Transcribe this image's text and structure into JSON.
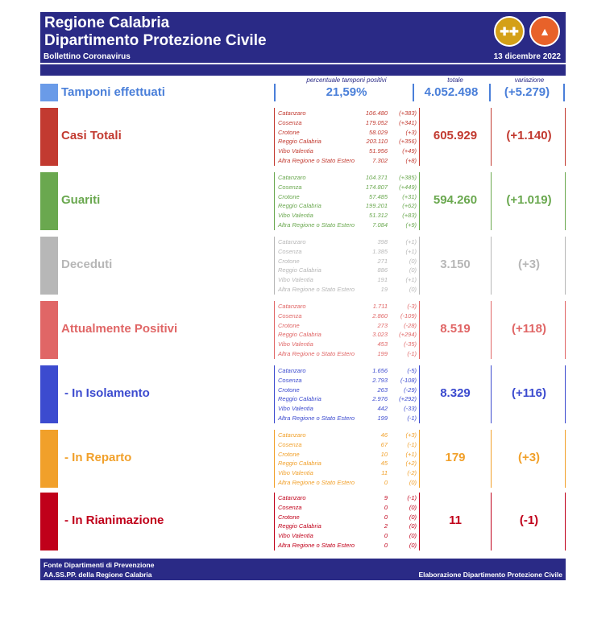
{
  "header": {
    "title1": "Regione Calabria",
    "title2": "Dipartimento Protezione Civile",
    "bulletin": "Bollettino Coronavirus",
    "date": "13 dicembre 2022",
    "logo2_text": "PROTEZIONE CIVILE"
  },
  "tamponi": {
    "head_pct": "percentuale tamponi positivi",
    "head_tot": "totale",
    "head_var": "variazione",
    "label": "Tamponi effettuati",
    "pct": "21,59%",
    "total": "4.052.498",
    "variation": "(+5.279)",
    "color": "#4a7fd9"
  },
  "rows": [
    {
      "label": "Casi Totali",
      "color": "#c23a30",
      "total": "605.929",
      "variation": "(+1.140)",
      "items": [
        {
          "name": "Catanzaro",
          "value": "106.480",
          "delta": "(+383)"
        },
        {
          "name": "Cosenza",
          "value": "179.052",
          "delta": "(+341)"
        },
        {
          "name": "Crotone",
          "value": "58.029",
          "delta": "(+3)"
        },
        {
          "name": "Reggio Calabria",
          "value": "203.110",
          "delta": "(+356)"
        },
        {
          "name": "Vibo Valentia",
          "value": "51.956",
          "delta": "(+49)"
        },
        {
          "name": "Altra Regione o Stato Estero",
          "value": "7.302",
          "delta": "(+8)"
        }
      ]
    },
    {
      "label": "Guariti",
      "color": "#6aa84f",
      "total": "594.260",
      "variation": "(+1.019)",
      "items": [
        {
          "name": "Catanzaro",
          "value": "104.371",
          "delta": "(+385)"
        },
        {
          "name": "Cosenza",
          "value": "174.807",
          "delta": "(+449)"
        },
        {
          "name": "Crotone",
          "value": "57.485",
          "delta": "(+31)"
        },
        {
          "name": "Reggio Calabria",
          "value": "199.201",
          "delta": "(+62)"
        },
        {
          "name": "Vibo Valentia",
          "value": "51.312",
          "delta": "(+83)"
        },
        {
          "name": "Altra Regione o Stato Estero",
          "value": "7.084",
          "delta": "(+9)"
        }
      ]
    },
    {
      "label": "Deceduti",
      "color": "#b7b7b7",
      "total": "3.150",
      "variation": "(+3)",
      "items": [
        {
          "name": "Catanzaro",
          "value": "398",
          "delta": "(+1)"
        },
        {
          "name": "Cosenza",
          "value": "1.385",
          "delta": "(+1)"
        },
        {
          "name": "Crotone",
          "value": "271",
          "delta": "(0)"
        },
        {
          "name": "Reggio Calabria",
          "value": "886",
          "delta": "(0)"
        },
        {
          "name": "Vibo Valentia",
          "value": "191",
          "delta": "(+1)"
        },
        {
          "name": "Altra Regione o Stato Estero",
          "value": "19",
          "delta": "(0)"
        }
      ]
    },
    {
      "label": "Attualmente Positivi",
      "color": "#e06666",
      "total": "8.519",
      "variation": "(+118)",
      "items": [
        {
          "name": "Catanzaro",
          "value": "1.711",
          "delta": "(-3)"
        },
        {
          "name": "Cosenza",
          "value": "2.860",
          "delta": "(-109)"
        },
        {
          "name": "Crotone",
          "value": "273",
          "delta": "(-28)"
        },
        {
          "name": "Reggio Calabria",
          "value": "3.023",
          "delta": "(+294)"
        },
        {
          "name": "Vibo Valentia",
          "value": "453",
          "delta": "(-35)"
        },
        {
          "name": "Altra Regione o Stato Estero",
          "value": "199",
          "delta": "(-1)"
        }
      ]
    },
    {
      "label": "- In Isolamento",
      "color": "#3c4bcf",
      "total": "8.329",
      "variation": "(+116)",
      "items": [
        {
          "name": "Catanzaro",
          "value": "1.656",
          "delta": "(-5)"
        },
        {
          "name": "Cosenza",
          "value": "2.793",
          "delta": "(-108)"
        },
        {
          "name": "Crotone",
          "value": "263",
          "delta": "(-29)"
        },
        {
          "name": "Reggio Calabria",
          "value": "2.976",
          "delta": "(+292)"
        },
        {
          "name": "Vibo Valentia",
          "value": "442",
          "delta": "(-33)"
        },
        {
          "name": "Altra Regione o Stato Estero",
          "value": "199",
          "delta": "(-1)"
        }
      ]
    },
    {
      "label": "- In Reparto",
      "color": "#f1a02a",
      "total": "179",
      "variation": "(+3)",
      "items": [
        {
          "name": "Catanzaro",
          "value": "46",
          "delta": "(+3)"
        },
        {
          "name": "Cosenza",
          "value": "67",
          "delta": "(-1)"
        },
        {
          "name": "Crotone",
          "value": "10",
          "delta": "(+1)"
        },
        {
          "name": "Reggio Calabria",
          "value": "45",
          "delta": "(+2)"
        },
        {
          "name": "Vibo Valentia",
          "value": "11",
          "delta": "(-2)"
        },
        {
          "name": "Altra Regione o Stato Estero",
          "value": "0",
          "delta": "(0)"
        }
      ]
    },
    {
      "label": "- In Rianimazione",
      "color": "#c0001a",
      "total": "11",
      "variation": "(-1)",
      "items": [
        {
          "name": "Catanzaro",
          "value": "9",
          "delta": "(-1)"
        },
        {
          "name": "Cosenza",
          "value": "0",
          "delta": "(0)"
        },
        {
          "name": "Crotone",
          "value": "0",
          "delta": "(0)"
        },
        {
          "name": "Reggio Calabria",
          "value": "2",
          "delta": "(0)"
        },
        {
          "name": "Vibo Valentia",
          "value": "0",
          "delta": "(0)"
        },
        {
          "name": "Altra Regione o Stato Estero",
          "value": "0",
          "delta": "(0)"
        }
      ]
    }
  ],
  "footer": {
    "line1": "Fonte Dipartimenti di Prevenzione",
    "line2": "AA.SS.PP.  della Regione Calabria",
    "right": "Elaborazione Dipartimento Protezione Civile"
  }
}
